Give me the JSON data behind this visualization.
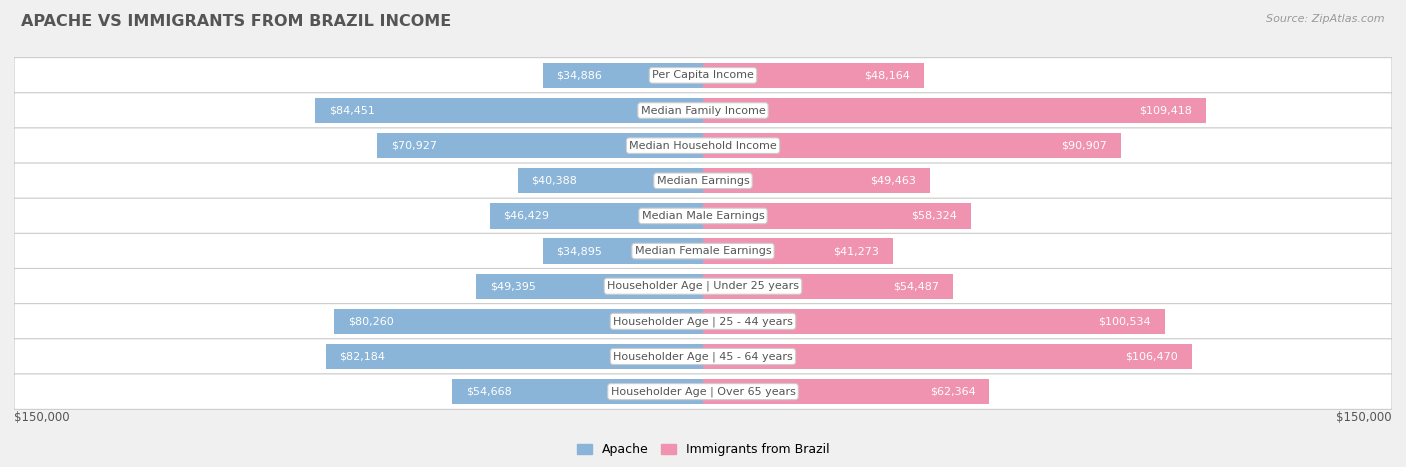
{
  "title": "APACHE VS IMMIGRANTS FROM BRAZIL INCOME",
  "source": "Source: ZipAtlas.com",
  "categories": [
    "Per Capita Income",
    "Median Family Income",
    "Median Household Income",
    "Median Earnings",
    "Median Male Earnings",
    "Median Female Earnings",
    "Householder Age | Under 25 years",
    "Householder Age | 25 - 44 years",
    "Householder Age | 45 - 64 years",
    "Householder Age | Over 65 years"
  ],
  "apache_values": [
    34886,
    84451,
    70927,
    40388,
    46429,
    34895,
    49395,
    80260,
    82184,
    54668
  ],
  "brazil_values": [
    48164,
    109418,
    90907,
    49463,
    58324,
    41273,
    54487,
    100534,
    106470,
    62364
  ],
  "apache_color": "#8ab4d8",
  "brazil_color": "#f093b0",
  "apache_label": "Apache",
  "brazil_label": "Immigrants from Brazil",
  "x_max": 150000,
  "axis_label_left": "$150,000",
  "axis_label_right": "$150,000",
  "background_color": "#f0f0f0",
  "row_bg_color": "#ffffff",
  "row_border_color": "#cccccc",
  "title_color": "#555555",
  "source_color": "#999999",
  "label_inside_color": "#ffffff",
  "label_outside_color": "#666666",
  "cat_label_color": "#555555",
  "bar_height": 0.72
}
